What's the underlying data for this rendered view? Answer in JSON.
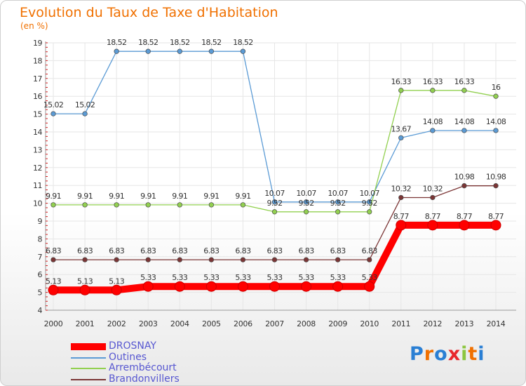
{
  "title": "Evolution du Taux de Taxe d'Habitation",
  "subtitle": "(en %)",
  "logo": {
    "text": "Proxiti",
    "colors": [
      "#2a7fd4",
      "#f07000",
      "#2a7fd4",
      "#e8262c",
      "#8cc63f",
      "#f07000",
      "#2a7fd4"
    ]
  },
  "chart_data": {
    "type": "line",
    "x": [
      "2000",
      "2001",
      "2002",
      "2003",
      "2004",
      "2005",
      "2006",
      "2007",
      "2008",
      "2009",
      "2010",
      "2011",
      "2012",
      "2013",
      "2014"
    ],
    "ylim": [
      4,
      19
    ],
    "yticks": [
      4,
      5,
      6,
      7,
      8,
      9,
      10,
      11,
      12,
      13,
      14,
      15,
      16,
      17,
      18,
      19
    ],
    "legend_position": "bottom-left",
    "series": [
      {
        "name": "Outines",
        "color": "#5b9bd5",
        "values": [
          15.02,
          15.02,
          18.52,
          18.52,
          18.52,
          18.52,
          18.52,
          10.07,
          10.07,
          10.07,
          10.07,
          13.67,
          14.08,
          14.08,
          14.08
        ],
        "labels": [
          "15.02",
          "15.02",
          "18.52",
          "18.52",
          "18.52",
          "18.52",
          "18.52",
          "10.07",
          "10.07",
          "10.07",
          "10.07",
          "13.67",
          "14.08",
          "14.08",
          "14.08"
        ]
      },
      {
        "name": "Arrembécourt",
        "color": "#92d050",
        "values": [
          9.91,
          9.91,
          9.91,
          9.91,
          9.91,
          9.91,
          9.91,
          9.52,
          9.52,
          9.52,
          9.52,
          16.33,
          16.33,
          16.33,
          16
        ],
        "labels": [
          "9.91",
          "9.91",
          "9.91",
          "9.91",
          "9.91",
          "9.91",
          "9.91",
          "9.52",
          "9.52",
          "9.52",
          "9.52",
          "16.33",
          "16.33",
          "16.33",
          "16"
        ]
      },
      {
        "name": "Brandonvillers",
        "color": "#7b3535",
        "values": [
          6.83,
          6.83,
          6.83,
          6.83,
          6.83,
          6.83,
          6.83,
          6.83,
          6.83,
          6.83,
          6.83,
          10.32,
          10.32,
          10.98,
          10.98
        ],
        "labels": [
          "6.83",
          "6.83",
          "6.83",
          "6.83",
          "6.83",
          "6.83",
          "6.83",
          "6.83",
          "6.83",
          "6.83",
          "6.83",
          "10.32",
          "10.32",
          "10.98",
          "10.98"
        ]
      },
      {
        "name": "DROSNAY",
        "color": "#ff0000",
        "values": [
          5.13,
          5.13,
          5.13,
          5.33,
          5.33,
          5.33,
          5.33,
          5.33,
          5.33,
          5.33,
          5.33,
          8.77,
          8.77,
          8.77,
          8.77
        ],
        "labels": [
          "5.13",
          "5.13",
          "5.13",
          "5.33",
          "5.33",
          "5.33",
          "5.33",
          "5.33",
          "5.33",
          "5.33",
          "5.33",
          "8.77",
          "8.77",
          "8.77",
          "8.77"
        ]
      }
    ]
  },
  "legend": [
    {
      "name": "DROSNAY",
      "color": "#ff0000"
    },
    {
      "name": "Outines",
      "color": "#5b9bd5"
    },
    {
      "name": "Arrembécourt",
      "color": "#92d050"
    },
    {
      "name": "Brandonvillers",
      "color": "#7b3535"
    }
  ]
}
